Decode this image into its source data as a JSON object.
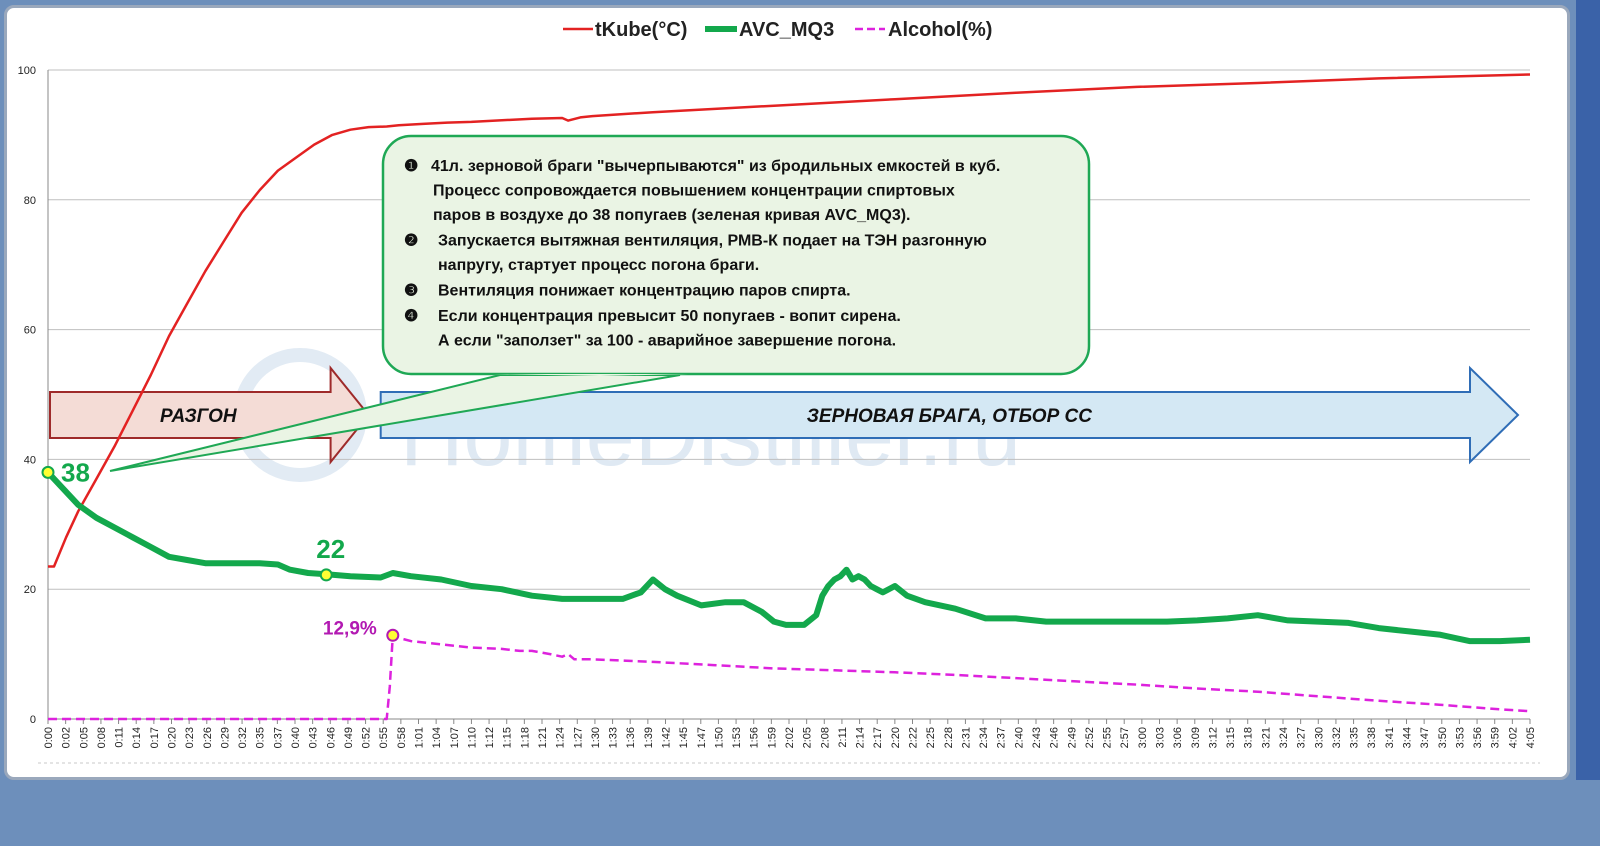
{
  "chart_data": {
    "type": "line",
    "legend": {
      "placement": "top-center",
      "items": [
        {
          "label": "tKube(°C)",
          "color": "#e32222",
          "style": "solid"
        },
        {
          "label": "AVC_MQ3",
          "color": "#13a84c",
          "style": "solid-thick"
        },
        {
          "label": "Alcohol(%)",
          "color": "#dd22dd",
          "style": "dashed"
        }
      ]
    },
    "ylim": [
      0,
      100
    ],
    "yticks": [
      "0",
      "20",
      "40",
      "60",
      "80",
      "100"
    ],
    "grid": true,
    "x_range_minutes": [
      0,
      245
    ],
    "xticks": [
      "0:00",
      "0:02",
      "0:05",
      "0:08",
      "0:11",
      "0:14",
      "0:17",
      "0:20",
      "0:23",
      "0:26",
      "0:29",
      "0:32",
      "0:35",
      "0:37",
      "0:40",
      "0:43",
      "0:46",
      "0:49",
      "0:52",
      "0:55",
      "0:58",
      "1:01",
      "1:04",
      "1:07",
      "1:10",
      "1:12",
      "1:15",
      "1:18",
      "1:21",
      "1:24",
      "1:27",
      "1:30",
      "1:33",
      "1:36",
      "1:39",
      "1:42",
      "1:45",
      "1:47",
      "1:50",
      "1:53",
      "1:56",
      "1:59",
      "2:02",
      "2:05",
      "2:08",
      "2:11",
      "2:14",
      "2:17",
      "2:20",
      "2:22",
      "2:25",
      "2:28",
      "2:31",
      "2:34",
      "2:37",
      "2:40",
      "2:43",
      "2:46",
      "2:49",
      "2:52",
      "2:55",
      "2:57",
      "3:00",
      "3:03",
      "3:06",
      "3:09",
      "3:12",
      "3:15",
      "3:18",
      "3:21",
      "3:24",
      "3:27",
      "3:30",
      "3:32",
      "3:35",
      "3:38",
      "3:41",
      "3:44",
      "3:47",
      "3:50",
      "3:53",
      "3:56",
      "3:59",
      "4:02",
      "4:05"
    ],
    "series": [
      {
        "name": "tKube(°C)",
        "color": "#e32222",
        "x": [
          0,
          1,
          3,
          5,
          8,
          11,
          14,
          17,
          20,
          23,
          26,
          29,
          32,
          35,
          38,
          41,
          44,
          47,
          50,
          53,
          56,
          58,
          62,
          66,
          70,
          80,
          85,
          86,
          88,
          90,
          100,
          120,
          140,
          160,
          180,
          200,
          220,
          245
        ],
        "y": [
          23.5,
          23.5,
          28,
          32,
          37,
          42,
          47.5,
          53,
          59,
          64,
          69,
          73.5,
          78,
          81.5,
          84.5,
          86.5,
          88.5,
          90,
          90.8,
          91.2,
          91.3,
          91.5,
          91.7,
          91.9,
          92,
          92.5,
          92.6,
          92.2,
          92.7,
          92.9,
          93.5,
          94.5,
          95.5,
          96.5,
          97.4,
          98,
          98.7,
          99.3
        ]
      },
      {
        "name": "AVC_MQ3",
        "color": "#13a84c",
        "x": [
          0,
          2,
          5,
          8,
          11,
          14,
          17,
          20,
          23,
          26,
          30,
          35,
          38,
          40,
          43,
          46,
          50,
          55,
          57,
          60,
          65,
          70,
          75,
          80,
          85,
          90,
          95,
          98,
          100,
          102,
          104,
          108,
          112,
          115,
          118,
          120,
          122,
          125,
          127,
          128,
          129,
          130,
          131,
          132,
          133,
          134,
          135,
          136,
          137,
          138,
          140,
          142,
          145,
          150,
          155,
          160,
          165,
          170,
          175,
          180,
          185,
          190,
          195,
          200,
          205,
          210,
          215,
          220,
          225,
          230,
          235,
          240,
          245
        ],
        "y": [
          38,
          36,
          33,
          31,
          29.5,
          28,
          26.5,
          25,
          24.5,
          24,
          24,
          24,
          23.8,
          23,
          22.5,
          22.3,
          22,
          21.8,
          22.5,
          22,
          21.5,
          20.5,
          20,
          19,
          18.5,
          18.5,
          18.5,
          19.5,
          21.5,
          20,
          19,
          17.5,
          18,
          18,
          16.5,
          15,
          14.5,
          14.5,
          16,
          19,
          20.5,
          21.5,
          22,
          23,
          21.5,
          22,
          21.5,
          20.5,
          20,
          19.5,
          20.5,
          19,
          18,
          17,
          15.5,
          15.5,
          15,
          15,
          15,
          15,
          15,
          15.2,
          15.5,
          16,
          15.2,
          15,
          14.8,
          14,
          13.5,
          13,
          12,
          12,
          12.2
        ]
      },
      {
        "name": "Alcohol(%)",
        "color": "#dd22dd",
        "x": [
          0,
          10,
          20,
          30,
          40,
          50,
          56,
          56.5,
          57,
          58,
          60,
          65,
          70,
          75,
          78,
          80,
          83,
          85,
          86,
          87,
          90,
          95,
          100,
          110,
          120,
          130,
          140,
          150,
          160,
          170,
          180,
          190,
          200,
          210,
          220,
          230,
          240,
          245
        ],
        "y": [
          0,
          0,
          0,
          0,
          0,
          0,
          0,
          5,
          12.9,
          12.5,
          12,
          11.5,
          11,
          10.8,
          10.5,
          10.5,
          10,
          9.6,
          10,
          9.2,
          9.2,
          9,
          8.8,
          8.3,
          7.8,
          7.5,
          7.2,
          6.8,
          6.3,
          5.8,
          5.3,
          4.7,
          4.2,
          3.5,
          2.8,
          2.2,
          1.5,
          1.2
        ]
      }
    ],
    "point_labels": [
      {
        "text": "38",
        "series": "AVC_MQ3",
        "x": 0,
        "y": 38,
        "color": "#13a84c"
      },
      {
        "text": "22",
        "series": "AVC_MQ3",
        "x": 46,
        "y": 22.2,
        "color": "#13a84c"
      },
      {
        "text": "12,9%",
        "series": "Alcohol(%)",
        "x": 57,
        "y": 12.9,
        "color": "#b219b2"
      }
    ],
    "phases": [
      {
        "label": "РАЗГОН",
        "fill": "#f4dcd6",
        "stroke": "#9e2a2a",
        "x_from": 0,
        "x_to": 53
      },
      {
        "label": "ЗЕРНОВАЯ БРАГА, ОТБОР СС",
        "fill": "#d4e8f4",
        "stroke": "#2f6db6",
        "x_from": 55,
        "x_to": 245
      }
    ],
    "annotation": {
      "fill": "#eaf4e4",
      "stroke": "#1fa855",
      "items": [
        {
          "num": "❶",
          "lines": [
            "41л. зерновой браги  \"вычерпываются\" из бродильных емкостей в куб.",
            "Процесс сопровождается повышением концентрации спиртовых",
            "паров в воздухе до 38 попугаев (зеленая кривая AVC_MQ3)."
          ]
        },
        {
          "num": "❷",
          "lines": [
            "Запускается вытяжная вентиляция, РМВ-К подает на ТЭН разгонную",
            "напругу, стартует процесс погона браги."
          ]
        },
        {
          "num": "❸",
          "lines": [
            "Вентиляция понижает концентрацию паров спирта."
          ]
        },
        {
          "num": "❹",
          "lines": [
            "Если концентрация превысит 50 попугаев - вопит сирена.",
            "А если \"заползет\" за 100 - аварийное завершение погона."
          ]
        }
      ]
    },
    "watermark": "HomeDistiller.ru"
  }
}
